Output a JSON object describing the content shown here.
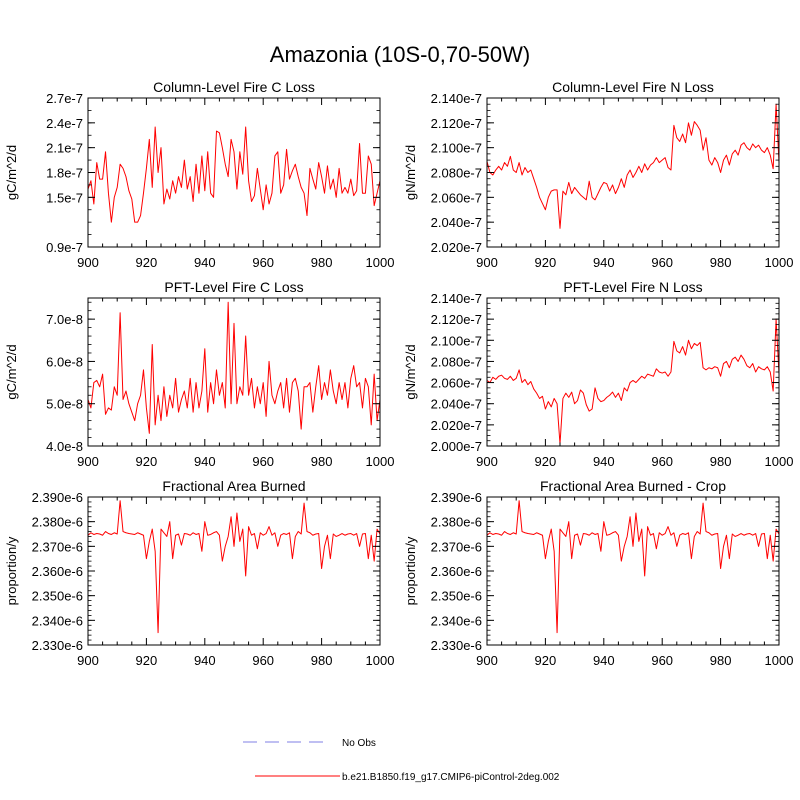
{
  "title": "Amazonia (10S-0,70-50W)",
  "colors": {
    "series": "#ff0000",
    "obs": "#aaaaee",
    "axis": "#000000"
  },
  "legend": {
    "obs_label": "No Obs",
    "model_label": "b.e21.B1850.f19_g17.CMIP6-piControl-2deg.002"
  },
  "chart_data": [
    {
      "type": "line",
      "title": "Column-Level Fire C Loss",
      "ylabel": "gC/m^2/d",
      "xlim": [
        900,
        1000
      ],
      "x_ticks": [
        900,
        920,
        940,
        960,
        980,
        1000
      ],
      "x_tick_labels": [
        "900",
        "920",
        "940",
        "960",
        "980",
        "1000"
      ],
      "ylim": [
        9e-08,
        2.7e-07
      ],
      "y_ticks": [
        9e-08,
        1.5e-07,
        1.8e-07,
        2.1e-07,
        2.4e-07,
        2.7e-07
      ],
      "y_tick_labels": [
        "0.9e-7",
        "1.5e-7",
        "1.8e-7",
        "2.1e-7",
        "2.4e-7",
        "2.7e-7"
      ],
      "y_minor_step": 1.5e-08,
      "series": [
        {
          "name": "b.e21.B1850.f19_g17.CMIP6-piControl-2deg.002",
          "x_start": 900,
          "x_step": 1,
          "values": [
            1.6e-07,
            1.7e-07,
            1.42e-07,
            1.92e-07,
            1.72e-07,
            1.72e-07,
            2.05e-07,
            1.55e-07,
            1.2e-07,
            1.5e-07,
            1.62e-07,
            1.9e-07,
            1.85e-07,
            1.75e-07,
            1.58e-07,
            1.48e-07,
            1.2e-07,
            1.2e-07,
            1.28e-07,
            1.55e-07,
            1.85e-07,
            2.2e-07,
            1.62e-07,
            2.35e-07,
            1.8e-07,
            2.1e-07,
            1.42e-07,
            1.6e-07,
            1.48e-07,
            1.7e-07,
            1.55e-07,
            1.75e-07,
            1.62e-07,
            1.95e-07,
            1.6e-07,
            1.75e-07,
            1.45e-07,
            1.9e-07,
            1.55e-07,
            2e-07,
            1.58e-07,
            2.05e-07,
            1.55e-07,
            1.5e-07,
            2.3e-07,
            2.28e-07,
            2.1e-07,
            1.9e-07,
            1.75e-07,
            2.2e-07,
            2.05e-07,
            1.6e-07,
            2.05e-07,
            1.78e-07,
            2.35e-07,
            1.7e-07,
            1.45e-07,
            1.52e-07,
            1.85e-07,
            1.6e-07,
            1.35e-07,
            1.65e-07,
            1.42e-07,
            1.55e-07,
            2e-07,
            2.05e-07,
            1.55e-07,
            1.65e-07,
            2.08e-07,
            1.72e-07,
            1.82e-07,
            1.9e-07,
            1.75e-07,
            1.62e-07,
            1.55e-07,
            1.28e-07,
            1.85e-07,
            1.72e-07,
            1.6e-07,
            1.92e-07,
            1.75e-07,
            1.55e-07,
            1.88e-07,
            1.6e-07,
            1.72e-07,
            1.5e-07,
            1.85e-07,
            1.55e-07,
            1.62e-07,
            1.55e-07,
            1.72e-07,
            1.52e-07,
            1.58e-07,
            2.15e-07,
            1.55e-07,
            1.55e-07,
            2e-07,
            1.9e-07,
            1.4e-07,
            1.55e-07,
            1.7e-07
          ]
        }
      ]
    },
    {
      "type": "line",
      "title": "Column-Level Fire N Loss",
      "ylabel": "gN/m^2/d",
      "xlim": [
        900,
        1000
      ],
      "x_ticks": [
        900,
        920,
        940,
        960,
        980,
        1000
      ],
      "x_tick_labels": [
        "900",
        "920",
        "940",
        "960",
        "980",
        "1000"
      ],
      "ylim": [
        2.02e-07,
        2.14e-07
      ],
      "y_ticks": [
        2.02e-07,
        2.04e-07,
        2.06e-07,
        2.08e-07,
        2.1e-07,
        2.12e-07,
        2.14e-07
      ],
      "y_tick_labels": [
        "2.020e-7",
        "2.040e-7",
        "2.060e-7",
        "2.080e-7",
        "2.100e-7",
        "2.120e-7",
        "2.140e-7"
      ],
      "y_minor_step": 5e-10,
      "series": [
        {
          "name": "b.e21.B1850.f19_g17.CMIP6-piControl-2deg.002",
          "x_start": 900,
          "x_step": 1,
          "values": [
            2.089e-07,
            2.08e-07,
            2.078e-07,
            2.082e-07,
            2.085e-07,
            2.082e-07,
            2.088e-07,
            2.085e-07,
            2.093e-07,
            2.082e-07,
            2.08e-07,
            2.088e-07,
            2.078e-07,
            2.084e-07,
            2.08e-07,
            2.082e-07,
            2.075e-07,
            2.068e-07,
            2.06e-07,
            2.055e-07,
            2.05e-07,
            2.06e-07,
            2.065e-07,
            2.066e-07,
            2.066e-07,
            2.035e-07,
            2.065e-07,
            2.062e-07,
            2.072e-07,
            2.063e-07,
            2.068e-07,
            2.065e-07,
            2.062e-07,
            2.06e-07,
            2.058e-07,
            2.073e-07,
            2.06e-07,
            2.058e-07,
            2.063e-07,
            2.068e-07,
            2.072e-07,
            2.071e-07,
            2.065e-07,
            2.07e-07,
            2.063e-07,
            2.068e-07,
            2.075e-07,
            2.068e-07,
            2.078e-07,
            2.082e-07,
            2.076e-07,
            2.08e-07,
            2.085e-07,
            2.08e-07,
            2.087e-07,
            2.082e-07,
            2.086e-07,
            2.088e-07,
            2.092e-07,
            2.088e-07,
            2.09e-07,
            2.092e-07,
            2.084e-07,
            2.082e-07,
            2.118e-07,
            2.108e-07,
            2.105e-07,
            2.111e-07,
            2.104e-07,
            2.12e-07,
            2.11e-07,
            2.121e-07,
            2.118e-07,
            2.114e-07,
            2.098e-07,
            2.108e-07,
            2.09e-07,
            2.086e-07,
            2.092e-07,
            2.088e-07,
            2.08e-07,
            2.09e-07,
            2.094e-07,
            2.086e-07,
            2.095e-07,
            2.098e-07,
            2.094e-07,
            2.102e-07,
            2.104e-07,
            2.1e-07,
            2.098e-07,
            2.103e-07,
            2.1e-07,
            2.102e-07,
            2.098e-07,
            2.096e-07,
            2.1e-07,
            2.094e-07,
            2.083e-07,
            2.135e-07,
            2.088e-07
          ]
        }
      ]
    },
    {
      "type": "line",
      "title": "PFT-Level Fire C Loss",
      "ylabel": "gC/m^2/d",
      "xlim": [
        900,
        1000
      ],
      "x_ticks": [
        900,
        920,
        940,
        960,
        980,
        1000
      ],
      "x_tick_labels": [
        "900",
        "920",
        "940",
        "960",
        "980",
        "1000"
      ],
      "ylim": [
        4e-08,
        7.5e-08
      ],
      "y_ticks": [
        4e-08,
        5e-08,
        6e-08,
        7e-08
      ],
      "y_tick_labels": [
        "4.0e-8",
        "5.0e-8",
        "6.0e-8",
        "7.0e-8"
      ],
      "y_minor_step": 2e-09,
      "series": [
        {
          "name": "b.e21.B1850.f19_g17.CMIP6-piControl-2deg.002",
          "x_start": 900,
          "x_step": 1,
          "values": [
            5.1e-08,
            4.9e-08,
            5.5e-08,
            5.55e-08,
            5.4e-08,
            5.7e-08,
            4.75e-08,
            4.9e-08,
            4.85e-08,
            5.4e-08,
            5.2e-08,
            7.15e-08,
            5.1e-08,
            5.3e-08,
            5e-08,
            4.8e-08,
            4.6e-08,
            5e-08,
            5.2e-08,
            5.8e-08,
            4.9e-08,
            4.3e-08,
            6.4e-08,
            4.5e-08,
            5.2e-08,
            4.6e-08,
            5.4e-08,
            4.7e-08,
            5.2e-08,
            4.9e-08,
            5.6e-08,
            4.8e-08,
            5.1e-08,
            5.3e-08,
            4.9e-08,
            5.6e-08,
            4.8e-08,
            5.5e-08,
            4.9e-08,
            5.3e-08,
            6.3e-08,
            4.8e-08,
            5.5e-08,
            5e-08,
            5.8e-08,
            5.2e-08,
            5.5e-08,
            4.9e-08,
            7.4e-08,
            5e-08,
            6.9e-08,
            5e-08,
            5.4e-08,
            5.2e-08,
            6.6e-08,
            5.2e-08,
            5.6e-08,
            4.9e-08,
            5.4e-08,
            5e-08,
            5.5e-08,
            4.7e-08,
            6e-08,
            5.2e-08,
            5e-08,
            5.3e-08,
            5.5e-08,
            4.9e-08,
            5.6e-08,
            4.8e-08,
            5.5e-08,
            5.6e-08,
            5.3e-08,
            4.4e-08,
            5.4e-08,
            5.4e-08,
            5.5e-08,
            4.8e-08,
            5.4e-08,
            5.9e-08,
            5.1e-08,
            5.5e-08,
            5.2e-08,
            5.8e-08,
            5.3e-08,
            5e-08,
            5.5e-08,
            5.1e-08,
            5.5e-08,
            4.9e-08,
            5.6e-08,
            5.9e-08,
            5.4e-08,
            5.5e-08,
            4.9e-08,
            5.6e-08,
            5.4e-08,
            4.5e-08,
            5.7e-08,
            4.6e-08,
            5.1e-08
          ]
        }
      ]
    },
    {
      "type": "line",
      "title": "PFT-Level Fire N Loss",
      "ylabel": "gN/m^2/d",
      "xlim": [
        900,
        1000
      ],
      "x_ticks": [
        900,
        920,
        940,
        960,
        980,
        1000
      ],
      "x_tick_labels": [
        "900",
        "920",
        "940",
        "960",
        "980",
        "1000"
      ],
      "ylim": [
        2e-07,
        2.14e-07
      ],
      "y_ticks": [
        2e-07,
        2.02e-07,
        2.04e-07,
        2.06e-07,
        2.08e-07,
        2.1e-07,
        2.12e-07,
        2.14e-07
      ],
      "y_tick_labels": [
        "2.000e-7",
        "2.020e-7",
        "2.040e-7",
        "2.060e-7",
        "2.080e-7",
        "2.100e-7",
        "2.120e-7",
        "2.140e-7"
      ],
      "y_minor_step": 5e-10,
      "series": [
        {
          "name": "b.e21.B1850.f19_g17.CMIP6-piControl-2deg.002",
          "x_start": 900,
          "x_step": 1,
          "values": [
            2.062e-07,
            2.06e-07,
            2.065e-07,
            2.063e-07,
            2.066e-07,
            2.067e-07,
            2.064e-07,
            2.063e-07,
            2.066e-07,
            2.062e-07,
            2.064e-07,
            2.072e-07,
            2.06e-07,
            2.063e-07,
            2.058e-07,
            2.061e-07,
            2.054e-07,
            2.05e-07,
            2.045e-07,
            2.047e-07,
            2.035e-07,
            2.042e-07,
            2.037e-07,
            2.045e-07,
            2.04e-07,
            2.002e-07,
            2.045e-07,
            2.05e-07,
            2.046e-07,
            2.051e-07,
            2.04e-07,
            2.043e-07,
            2.053e-07,
            2.05e-07,
            2.039e-07,
            2.033e-07,
            2.035e-07,
            2.055e-07,
            2.045e-07,
            2.042e-07,
            2.043e-07,
            2.046e-07,
            2.048e-07,
            2.051e-07,
            2.046e-07,
            2.05e-07,
            2.043e-07,
            2.055e-07,
            2.052e-07,
            2.06e-07,
            2.062e-07,
            2.06e-07,
            2.063e-07,
            2.066e-07,
            2.064e-07,
            2.068e-07,
            2.067e-07,
            2.066e-07,
            2.073e-07,
            2.07e-07,
            2.069e-07,
            2.07e-07,
            2.066e-07,
            2.07e-07,
            2.099e-07,
            2.09e-07,
            2.088e-07,
            2.094e-07,
            2.086e-07,
            2.1e-07,
            2.092e-07,
            2.097e-07,
            2.095e-07,
            2.098e-07,
            2.074e-07,
            2.072e-07,
            2.074e-07,
            2.073e-07,
            2.075e-07,
            2.074e-07,
            2.066e-07,
            2.078e-07,
            2.08e-07,
            2.074e-07,
            2.082e-07,
            2.084e-07,
            2.08e-07,
            2.086e-07,
            2.082e-07,
            2.076e-07,
            2.074e-07,
            2.078e-07,
            2.07e-07,
            2.075e-07,
            2.073e-07,
            2.072e-07,
            2.075e-07,
            2.07e-07,
            2.052e-07,
            2.12e-07,
            2.068e-07
          ]
        }
      ]
    },
    {
      "type": "line",
      "title": "Fractional Area Burned",
      "ylabel": "proportion/y",
      "xlim": [
        900,
        1000
      ],
      "x_ticks": [
        900,
        920,
        940,
        960,
        980,
        1000
      ],
      "x_tick_labels": [
        "900",
        "920",
        "940",
        "960",
        "980",
        "1000"
      ],
      "ylim": [
        2.33e-06,
        2.39e-06
      ],
      "y_ticks": [
        2.33e-06,
        2.34e-06,
        2.35e-06,
        2.36e-06,
        2.37e-06,
        2.38e-06,
        2.39e-06
      ],
      "y_tick_labels": [
        "2.330e-6",
        "2.340e-6",
        "2.350e-6",
        "2.360e-6",
        "2.370e-6",
        "2.380e-6",
        "2.390e-6"
      ],
      "y_minor_step": 2e-09,
      "series": [
        {
          "name": "b.e21.B1850.f19_g17.CMIP6-piControl-2deg.002",
          "x_start": 900,
          "x_step": 1,
          "values": [
            2.3745e-06,
            2.3755e-06,
            2.3748e-06,
            2.3752e-06,
            2.375e-06,
            2.3745e-06,
            2.376e-06,
            2.3752e-06,
            2.3748e-06,
            2.3755e-06,
            2.375e-06,
            2.3885e-06,
            2.376e-06,
            2.3755e-06,
            2.3752e-06,
            2.375e-06,
            2.3748e-06,
            2.3755e-06,
            2.375e-06,
            2.3745e-06,
            2.365e-06,
            2.372e-06,
            2.377e-06,
            2.368e-06,
            2.335e-06,
            2.377e-06,
            2.3755e-06,
            2.374e-06,
            2.38e-06,
            2.365e-06,
            2.3745e-06,
            2.375e-06,
            2.3705e-06,
            2.3752e-06,
            2.375e-06,
            2.3745e-06,
            2.3755e-06,
            2.3748e-06,
            2.3752e-06,
            2.368e-06,
            2.38e-06,
            2.3745e-06,
            2.3748e-06,
            2.3755e-06,
            2.376e-06,
            2.3745e-06,
            2.364e-06,
            2.37e-06,
            2.374e-06,
            2.382e-06,
            2.37e-06,
            2.3835e-06,
            2.372e-06,
            2.377e-06,
            2.358e-06,
            2.378e-06,
            2.3745e-06,
            2.3752e-06,
            2.369e-06,
            2.3755e-06,
            2.3745e-06,
            2.3752e-06,
            2.378e-06,
            2.3745e-06,
            2.3755e-06,
            2.37e-06,
            2.3745e-06,
            2.3752e-06,
            2.3748e-06,
            2.3755e-06,
            2.365e-06,
            2.374e-06,
            2.376e-06,
            2.375e-06,
            2.3875e-06,
            2.376e-06,
            2.3755e-06,
            2.3745e-06,
            2.375e-06,
            2.3752e-06,
            2.361e-06,
            2.37e-06,
            2.3745e-06,
            2.365e-06,
            2.375e-06,
            2.374e-06,
            2.3745e-06,
            2.3752e-06,
            2.3745e-06,
            2.375e-06,
            2.3752e-06,
            2.3745e-06,
            2.3752e-06,
            2.37e-06,
            2.375e-06,
            2.3752e-06,
            2.365e-06,
            2.3745e-06,
            2.364e-06,
            2.377e-06,
            2.375e-06
          ]
        }
      ]
    },
    {
      "type": "line",
      "title": "Fractional Area Burned - Crop",
      "ylabel": "proportion/y",
      "xlim": [
        900,
        1000
      ],
      "x_ticks": [
        900,
        920,
        940,
        960,
        980,
        1000
      ],
      "x_tick_labels": [
        "900",
        "920",
        "940",
        "960",
        "980",
        "1000"
      ],
      "ylim": [
        2.33e-06,
        2.39e-06
      ],
      "y_ticks": [
        2.33e-06,
        2.34e-06,
        2.35e-06,
        2.36e-06,
        2.37e-06,
        2.38e-06,
        2.39e-06
      ],
      "y_tick_labels": [
        "2.330e-6",
        "2.340e-6",
        "2.350e-6",
        "2.360e-6",
        "2.370e-6",
        "2.380e-6",
        "2.390e-6"
      ],
      "y_minor_step": 2e-09,
      "series": [
        {
          "name": "b.e21.B1850.f19_g17.CMIP6-piControl-2deg.002",
          "x_start": 900,
          "x_step": 1,
          "values": [
            2.3745e-06,
            2.3755e-06,
            2.3748e-06,
            2.3752e-06,
            2.375e-06,
            2.3745e-06,
            2.376e-06,
            2.3752e-06,
            2.3748e-06,
            2.3755e-06,
            2.375e-06,
            2.3885e-06,
            2.376e-06,
            2.3755e-06,
            2.3752e-06,
            2.375e-06,
            2.3748e-06,
            2.3755e-06,
            2.375e-06,
            2.3745e-06,
            2.365e-06,
            2.372e-06,
            2.377e-06,
            2.368e-06,
            2.335e-06,
            2.377e-06,
            2.3755e-06,
            2.374e-06,
            2.38e-06,
            2.365e-06,
            2.3745e-06,
            2.375e-06,
            2.3705e-06,
            2.3752e-06,
            2.375e-06,
            2.3745e-06,
            2.3755e-06,
            2.3748e-06,
            2.3752e-06,
            2.368e-06,
            2.38e-06,
            2.3745e-06,
            2.3748e-06,
            2.3755e-06,
            2.376e-06,
            2.3745e-06,
            2.364e-06,
            2.37e-06,
            2.374e-06,
            2.382e-06,
            2.37e-06,
            2.3835e-06,
            2.372e-06,
            2.377e-06,
            2.358e-06,
            2.378e-06,
            2.3745e-06,
            2.3752e-06,
            2.369e-06,
            2.3755e-06,
            2.3745e-06,
            2.3752e-06,
            2.378e-06,
            2.3745e-06,
            2.3755e-06,
            2.37e-06,
            2.3745e-06,
            2.3752e-06,
            2.3748e-06,
            2.3755e-06,
            2.365e-06,
            2.374e-06,
            2.376e-06,
            2.375e-06,
            2.3875e-06,
            2.376e-06,
            2.3755e-06,
            2.3745e-06,
            2.375e-06,
            2.3752e-06,
            2.361e-06,
            2.37e-06,
            2.3745e-06,
            2.365e-06,
            2.375e-06,
            2.374e-06,
            2.3745e-06,
            2.3752e-06,
            2.3745e-06,
            2.375e-06,
            2.3752e-06,
            2.3745e-06,
            2.3752e-06,
            2.37e-06,
            2.375e-06,
            2.3752e-06,
            2.365e-06,
            2.3745e-06,
            2.364e-06,
            2.377e-06,
            2.375e-06
          ]
        }
      ]
    }
  ]
}
